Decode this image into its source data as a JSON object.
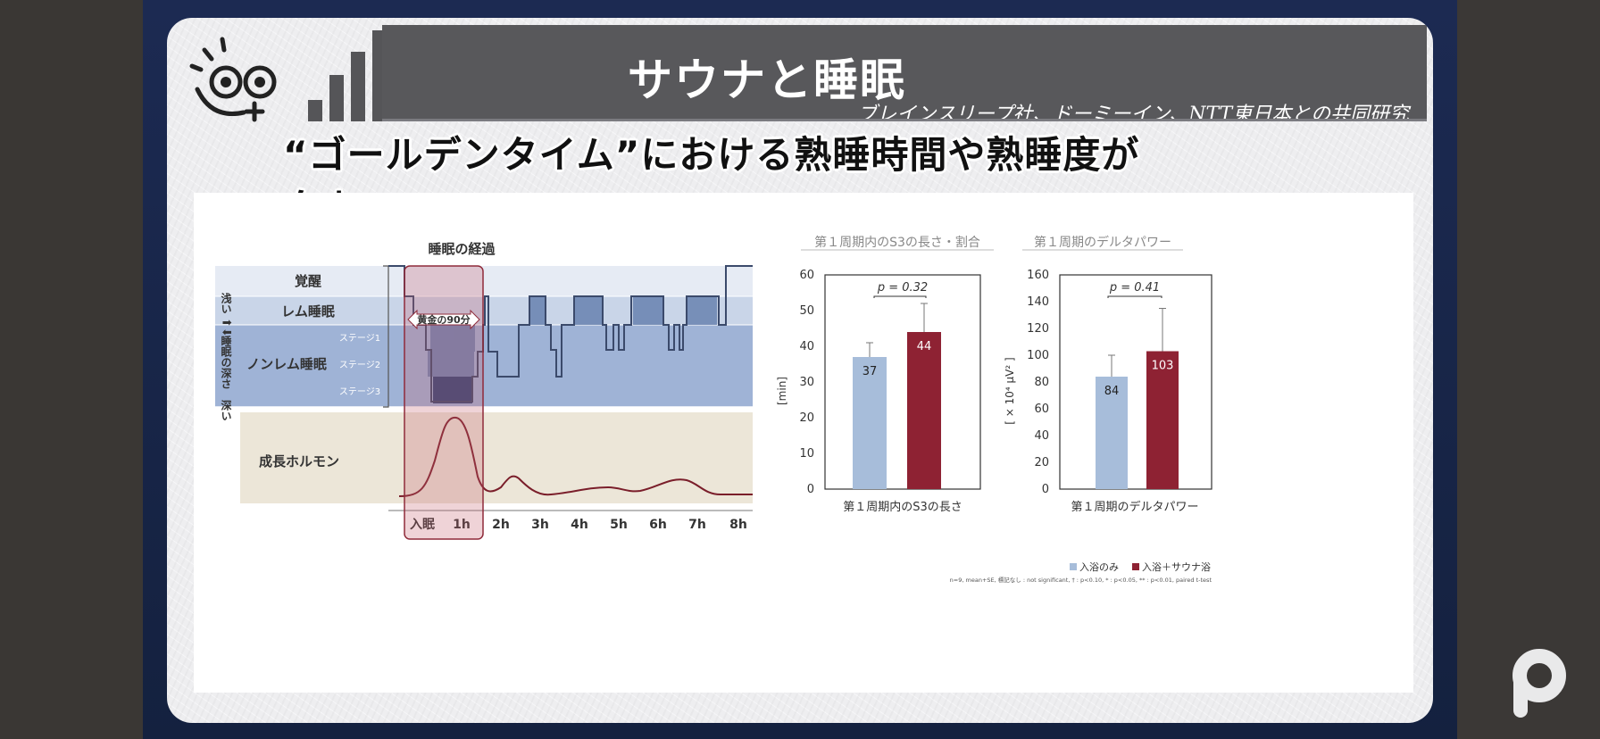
{
  "slide": {
    "title": "サウナと睡眠",
    "subtitle": "ブレインスリープ社、ドーミーイン、NTT東日本との共同研究",
    "headline": "“ゴールデンタイム”における熟睡時間や熟睡度が向上"
  },
  "sleep_chart": {
    "title": "睡眠の経過",
    "axis_label_top": "浅い",
    "axis_label_mid": "睡眠の深さ",
    "axis_label_bottom": "深い",
    "arrow_glyph": "⬆⬇",
    "bands": [
      "覚醒",
      "レム睡眠",
      "ノンレム睡眠"
    ],
    "stages": [
      "ステージ1",
      "ステージ2",
      "ステージ3"
    ],
    "hormone_label": "成長ホルモン",
    "golden_label": "黄金の90分",
    "time_labels": [
      "入眠",
      "1h",
      "2h",
      "3h",
      "4h",
      "5h",
      "6h",
      "7h",
      "8h"
    ],
    "colors": {
      "awake": "#e6ebf4",
      "rem": "#c9d5e8",
      "nrem": "#9fb3d6",
      "hormone_bg": "#ece6d8",
      "golden": "#d8a3ab",
      "curve": "#7a1e2a"
    }
  },
  "chart_data": [
    {
      "type": "bar",
      "title": "第１周期内のS3の長さ・割合",
      "categories": [
        "入浴のみ",
        "入浴＋サウナ浴"
      ],
      "values": [
        37,
        44
      ],
      "errors": [
        4,
        8
      ],
      "xlabel": "第１周期内のS3の長さ",
      "ylabel": "[min]",
      "ylim": [
        0,
        60
      ],
      "yticks": [
        0,
        10,
        20,
        30,
        40,
        50,
        60
      ],
      "annotation": "p = 0.32",
      "colors": [
        "#a7bdda",
        "#8e2233"
      ]
    },
    {
      "type": "bar",
      "title": "第１周期のデルタパワー",
      "categories": [
        "入浴のみ",
        "入浴＋サウナ浴"
      ],
      "values": [
        84,
        103
      ],
      "errors": [
        16,
        32
      ],
      "xlabel": "第１周期のデルタパワー",
      "ylabel": "[ × 10⁴ μV² ]",
      "ylim": [
        0,
        160
      ],
      "yticks": [
        0,
        20,
        40,
        60,
        80,
        100,
        120,
        140,
        160
      ],
      "annotation": "p = 0.41",
      "colors": [
        "#a7bdda",
        "#8e2233"
      ]
    }
  ],
  "legend": {
    "items": [
      "入浴のみ",
      "入浴＋サウナ浴"
    ],
    "colors": [
      "#a7bdda",
      "#8e2233"
    ],
    "footnote": "n=9, mean+SE, 標記なし : not significant, † : p<0.10, * : p<0.05, ** : p<0.01, paired t-test"
  }
}
